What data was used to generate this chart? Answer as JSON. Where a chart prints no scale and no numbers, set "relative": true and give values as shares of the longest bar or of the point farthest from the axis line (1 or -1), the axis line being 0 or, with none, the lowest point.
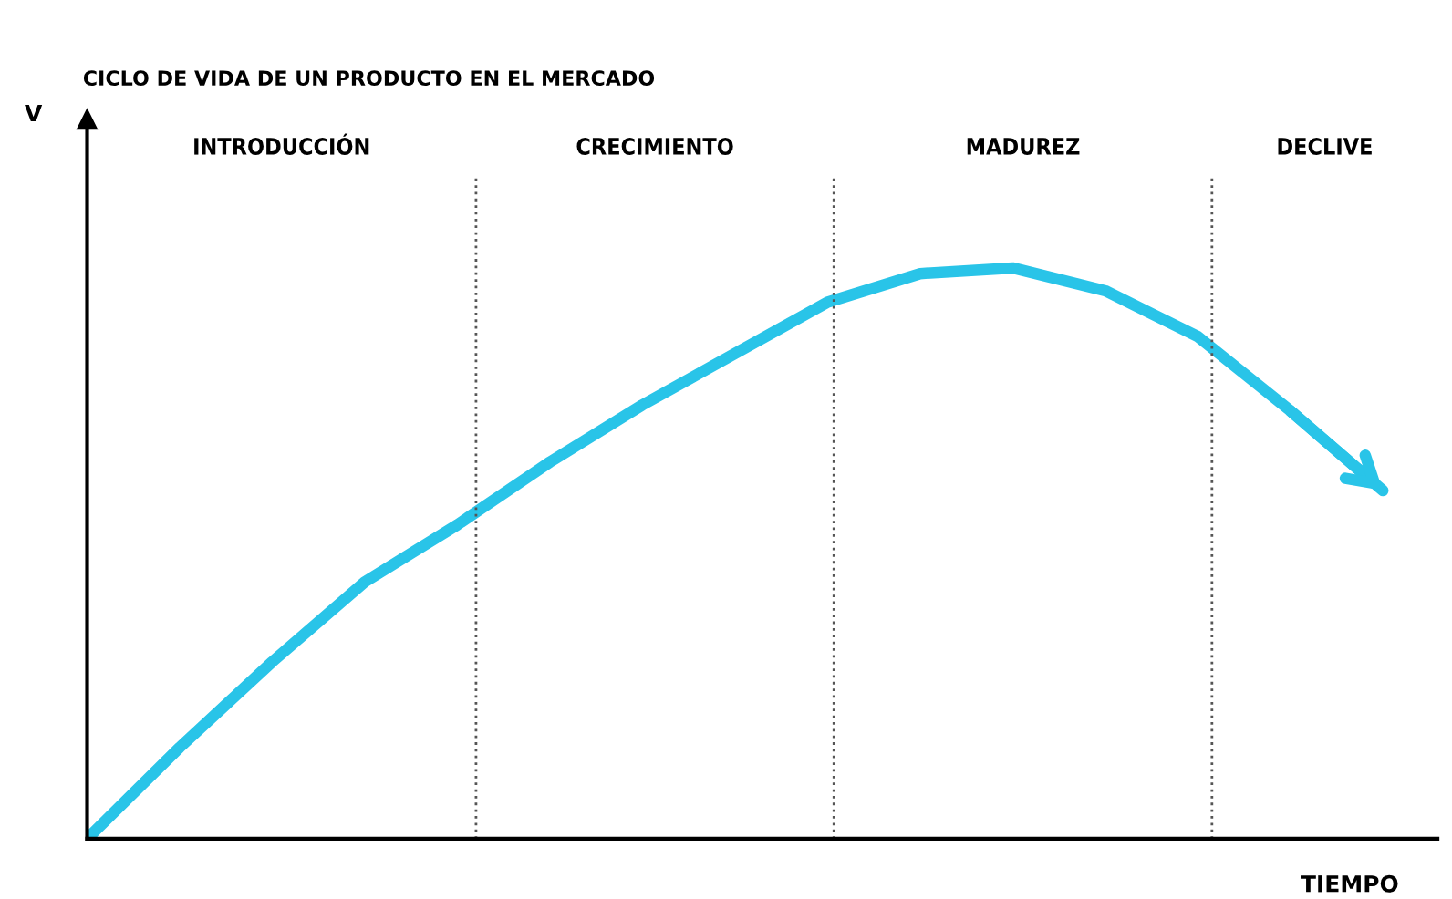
{
  "chart_data": {
    "type": "line",
    "title": "CICLO DE VIDA DE UN PRODUCTO EN EL MERCADO",
    "xlabel": "TIEMPO",
    "relative": true,
    "categories": [
      null,
      null,
      null,
      null,
      null,
      null,
      null,
      null,
      null,
      null,
      null,
      null,
      null,
      null,
      null
    ],
    "series": [
      {
        "color": "#29c4e8",
        "values": [
          0,
          0.16,
          0.31,
          0.45,
          0.55,
          0.66,
          0.76,
          0.85,
          0.94,
          0.99,
          1.0,
          0.96,
          0.88,
          0.75,
          0.61
        ]
      }
    ],
    "annotations": [
      "V",
      "INTRODUCCIÓN",
      "CRECIMIENTO",
      "MADUREZ",
      "DECLIVE"
    ],
    "legend": false,
    "marker": "none",
    "line_style": "solid"
  }
}
